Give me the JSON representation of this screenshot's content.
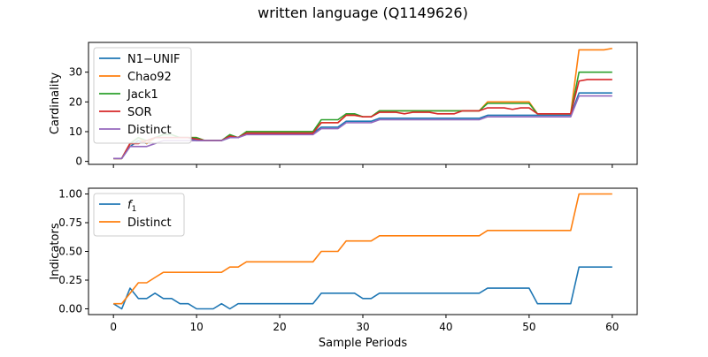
{
  "figure": {
    "title": "written language (Q1149626)"
  },
  "chart_data": [
    {
      "type": "line",
      "ylabel": "Cardinality",
      "xlabel": "",
      "xlim": [
        -3,
        63
      ],
      "ylim": [
        -1,
        40
      ],
      "xticks": [
        "0",
        "10",
        "20",
        "30",
        "40",
        "50",
        "60"
      ],
      "show_xtick_labels": false,
      "yticks": [
        "0",
        "10",
        "20",
        "30"
      ],
      "legend": "upper left",
      "series": [
        {
          "name": "N1−UNIF",
          "color": "#1f77b4",
          "values": [
            1,
            1,
            5,
            7,
            6,
            8,
            8,
            8,
            8,
            8,
            7,
            7,
            7,
            7,
            8,
            8,
            9.5,
            9.5,
            9.5,
            9.5,
            9.5,
            9.5,
            9.5,
            9.5,
            9.5,
            11.5,
            11.5,
            11.5,
            13.5,
            13.5,
            13.5,
            13.5,
            14.5,
            14.5,
            14.5,
            14.5,
            14.5,
            14.5,
            14.5,
            14.5,
            14.5,
            14.5,
            14.5,
            14.5,
            14.5,
            15.5,
            15.5,
            15.5,
            15.5,
            15.5,
            15.5,
            15.5,
            15.5,
            15.5,
            15.5,
            15.5,
            23,
            23,
            23,
            23,
            23
          ]
        },
        {
          "name": "Chao92",
          "color": "#ff7f0e",
          "values": [
            1,
            1,
            6,
            8,
            6,
            8,
            8,
            8,
            8,
            8,
            8,
            7,
            7,
            7,
            8.5,
            8,
            10,
            10,
            10,
            10,
            10,
            10,
            10,
            10,
            10,
            13,
            13,
            13,
            15.5,
            15.5,
            15,
            15,
            17,
            17,
            17,
            17,
            17,
            17,
            17,
            17,
            17,
            17,
            17,
            17,
            17,
            20,
            20,
            20,
            20,
            20,
            20,
            16,
            16,
            16,
            16,
            16,
            37.5,
            37.5,
            37.5,
            37.5,
            38
          ]
        },
        {
          "name": "Jack1",
          "color": "#2ca02c",
          "values": [
            1,
            1,
            6,
            8,
            7,
            8,
            9,
            9,
            8,
            8,
            8,
            7,
            7,
            7,
            9,
            8,
            10,
            10,
            10,
            10,
            10,
            10,
            10,
            10,
            10,
            14,
            14,
            14,
            16,
            16,
            15,
            15,
            17,
            17,
            17,
            17,
            17,
            17,
            17,
            17,
            17,
            17,
            17,
            17,
            17,
            19.5,
            19.5,
            19.5,
            19.5,
            19.5,
            19.5,
            16,
            16,
            16,
            16,
            16,
            30,
            30,
            30,
            30,
            30
          ]
        },
        {
          "name": "SOR",
          "color": "#d62728",
          "values": [
            1,
            1,
            6,
            6,
            7,
            8,
            8,
            8,
            8,
            8,
            7.5,
            7,
            7,
            7,
            8.5,
            8,
            9.5,
            9.5,
            9.5,
            9.5,
            9.5,
            9.5,
            9.5,
            9.5,
            9.5,
            13,
            13,
            13,
            15.5,
            15.5,
            15,
            15,
            16.5,
            16.5,
            16.5,
            16,
            16.5,
            16.5,
            16.5,
            16,
            16,
            16,
            17,
            17,
            17,
            18,
            18,
            18,
            17.5,
            18,
            18,
            16,
            16,
            16,
            16,
            16,
            27,
            27.5,
            27.5,
            27.5,
            27.5
          ]
        },
        {
          "name": "Distinct",
          "color": "#9467bd",
          "values": [
            1,
            1,
            5,
            5,
            5,
            6,
            7,
            7,
            7,
            7,
            7,
            7,
            7,
            7,
            8,
            8,
            9,
            9,
            9,
            9,
            9,
            9,
            9,
            9,
            9,
            11,
            11,
            11,
            13,
            13,
            13,
            13,
            14,
            14,
            14,
            14,
            14,
            14,
            14,
            14,
            14,
            14,
            14,
            14,
            14,
            15,
            15,
            15,
            15,
            15,
            15,
            15,
            15,
            15,
            15,
            15,
            22,
            22,
            22,
            22,
            22
          ]
        }
      ]
    },
    {
      "type": "line",
      "ylabel": "Indicators",
      "xlabel": "Sample Periods",
      "xlim": [
        -3,
        63
      ],
      "ylim": [
        -0.05,
        1.05
      ],
      "xticks": [
        "0",
        "10",
        "20",
        "30",
        "40",
        "50",
        "60"
      ],
      "show_xtick_labels": true,
      "yticks": [
        "0.00",
        "0.25",
        "0.50",
        "0.75",
        "1.00"
      ],
      "legend": "upper left",
      "series": [
        {
          "name": "f1",
          "color": "#1f77b4",
          "values": [
            0.045,
            0,
            0.18,
            0.09,
            0.09,
            0.136,
            0.09,
            0.09,
            0.045,
            0.045,
            0,
            0,
            0,
            0.045,
            0,
            0.045,
            0.045,
            0.045,
            0.045,
            0.045,
            0.045,
            0.045,
            0.045,
            0.045,
            0.045,
            0.136,
            0.136,
            0.136,
            0.136,
            0.136,
            0.09,
            0.09,
            0.136,
            0.136,
            0.136,
            0.136,
            0.136,
            0.136,
            0.136,
            0.136,
            0.136,
            0.136,
            0.136,
            0.136,
            0.136,
            0.18,
            0.18,
            0.18,
            0.18,
            0.18,
            0.18,
            0.045,
            0.045,
            0.045,
            0.045,
            0.045,
            0.364,
            0.364,
            0.364,
            0.364,
            0.364
          ]
        },
        {
          "name": "Distinct",
          "color": "#ff7f0e",
          "values": [
            0.045,
            0.045,
            0.136,
            0.227,
            0.227,
            0.273,
            0.318,
            0.318,
            0.318,
            0.318,
            0.318,
            0.318,
            0.318,
            0.318,
            0.364,
            0.364,
            0.409,
            0.409,
            0.409,
            0.409,
            0.409,
            0.409,
            0.409,
            0.409,
            0.409,
            0.5,
            0.5,
            0.5,
            0.591,
            0.591,
            0.591,
            0.591,
            0.636,
            0.636,
            0.636,
            0.636,
            0.636,
            0.636,
            0.636,
            0.636,
            0.636,
            0.636,
            0.636,
            0.636,
            0.636,
            0.682,
            0.682,
            0.682,
            0.682,
            0.682,
            0.682,
            0.682,
            0.682,
            0.682,
            0.682,
            0.682,
            1,
            1,
            1,
            1,
            1
          ]
        }
      ]
    }
  ]
}
